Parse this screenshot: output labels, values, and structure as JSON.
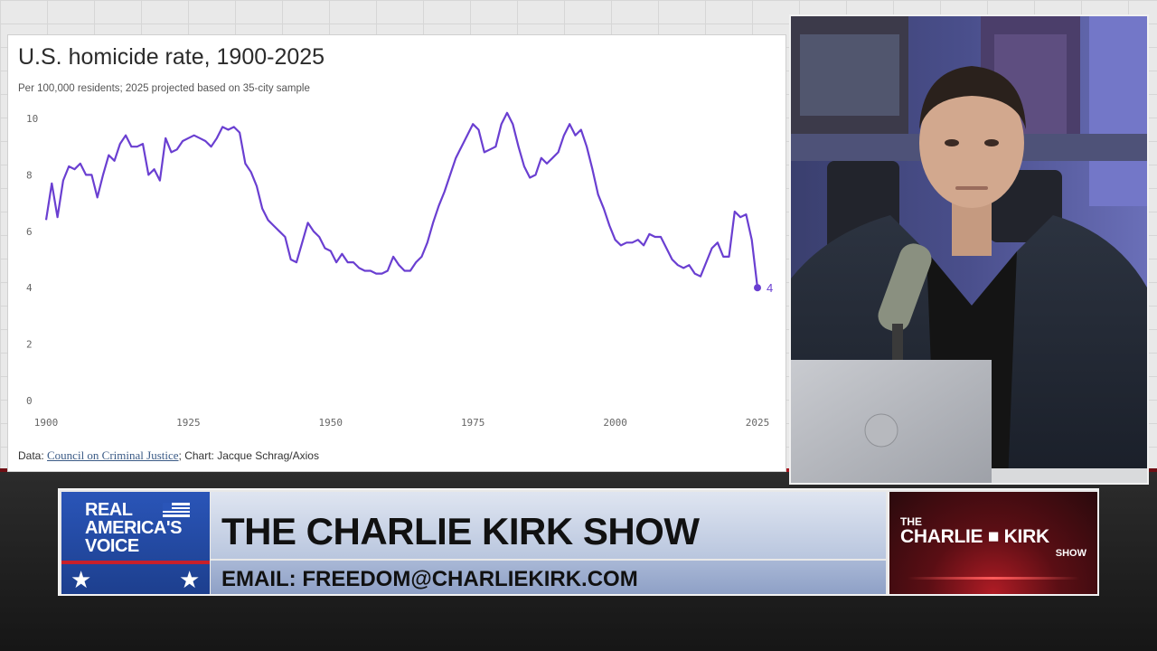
{
  "chart": {
    "title": "U.S. homicide rate, 1900-2025",
    "subtitle": "Per 100,000 residents; 2025 projected based on 35-city sample",
    "source_prefix": "Data: ",
    "source_link": "Council on Criminal Justice",
    "source_suffix": "; Chart: Jacque Schrag/Axios",
    "line_color": "#6a3fd1"
  },
  "chart_data": {
    "type": "line",
    "title": "U.S. homicide rate, 1900-2025",
    "subtitle": "Per 100,000 residents; 2025 projected based on 35-city sample",
    "xlabel": "",
    "ylabel": "",
    "xlim": [
      1900,
      2025
    ],
    "ylim": [
      0,
      10
    ],
    "x_ticks": [
      1900,
      1925,
      1950,
      1975,
      2000,
      2025
    ],
    "y_ticks": [
      0,
      2,
      4,
      6,
      8,
      10
    ],
    "grid": false,
    "end_label": "4",
    "x": [
      1900,
      1901,
      1902,
      1903,
      1904,
      1905,
      1906,
      1907,
      1908,
      1909,
      1910,
      1911,
      1912,
      1913,
      1914,
      1915,
      1916,
      1917,
      1918,
      1919,
      1920,
      1921,
      1922,
      1923,
      1924,
      1925,
      1926,
      1927,
      1928,
      1929,
      1930,
      1931,
      1932,
      1933,
      1934,
      1935,
      1936,
      1937,
      1938,
      1939,
      1940,
      1941,
      1942,
      1943,
      1944,
      1945,
      1946,
      1947,
      1948,
      1949,
      1950,
      1951,
      1952,
      1953,
      1954,
      1955,
      1956,
      1957,
      1958,
      1959,
      1960,
      1961,
      1962,
      1963,
      1964,
      1965,
      1966,
      1967,
      1968,
      1969,
      1970,
      1971,
      1972,
      1973,
      1974,
      1975,
      1976,
      1977,
      1978,
      1979,
      1980,
      1981,
      1982,
      1983,
      1984,
      1985,
      1986,
      1987,
      1988,
      1989,
      1990,
      1991,
      1992,
      1993,
      1994,
      1995,
      1996,
      1997,
      1998,
      1999,
      2000,
      2001,
      2002,
      2003,
      2004,
      2005,
      2006,
      2007,
      2008,
      2009,
      2010,
      2011,
      2012,
      2013,
      2014,
      2015,
      2016,
      2017,
      2018,
      2019,
      2020,
      2021,
      2022,
      2023,
      2024,
      2025
    ],
    "values": [
      6.4,
      7.7,
      6.5,
      7.8,
      8.3,
      8.2,
      8.4,
      8.0,
      8.0,
      7.2,
      8.0,
      8.7,
      8.5,
      9.1,
      9.4,
      9.0,
      9.0,
      9.1,
      8.0,
      8.2,
      7.8,
      9.3,
      8.8,
      8.9,
      9.2,
      9.3,
      9.4,
      9.3,
      9.2,
      9.0,
      9.3,
      9.7,
      9.6,
      9.7,
      9.5,
      8.4,
      8.1,
      7.6,
      6.8,
      6.4,
      6.2,
      6.0,
      5.8,
      5.0,
      4.9,
      5.6,
      6.3,
      6.0,
      5.8,
      5.4,
      5.3,
      4.9,
      5.2,
      4.9,
      4.9,
      4.7,
      4.6,
      4.6,
      4.5,
      4.5,
      4.6,
      5.1,
      4.8,
      4.6,
      4.6,
      4.9,
      5.1,
      5.6,
      6.3,
      6.9,
      7.4,
      8.0,
      8.6,
      9.0,
      9.4,
      9.8,
      9.6,
      8.8,
      8.9,
      9.0,
      9.8,
      10.2,
      9.8,
      9.0,
      8.3,
      7.9,
      8.0,
      8.6,
      8.4,
      8.6,
      8.8,
      9.4,
      9.8,
      9.4,
      9.6,
      9.0,
      8.2,
      7.3,
      6.8,
      6.2,
      5.7,
      5.5,
      5.6,
      5.6,
      5.7,
      5.5,
      5.9,
      5.8,
      5.8,
      5.4,
      5.0,
      4.8,
      4.7,
      4.8,
      4.5,
      4.4,
      4.9,
      5.4,
      5.6,
      5.1,
      5.1,
      6.7,
      6.5,
      6.6,
      5.7,
      4.0
    ]
  },
  "banner": {
    "network_line1": "REAL",
    "network_line2": "AMERICA'S",
    "network_line3": "VOICE",
    "show_name": "THE CHARLIE KIRK SHOW",
    "email": "EMAIL: FREEDOM@CHARLIEKIRK.COM",
    "logo_the": "THE",
    "logo_main": "CHARLIE ■ KIRK",
    "logo_show": "SHOW"
  },
  "icons": [
    "star-icon",
    "flag-icon",
    "microphone-icon",
    "laptop-logo-icon"
  ]
}
